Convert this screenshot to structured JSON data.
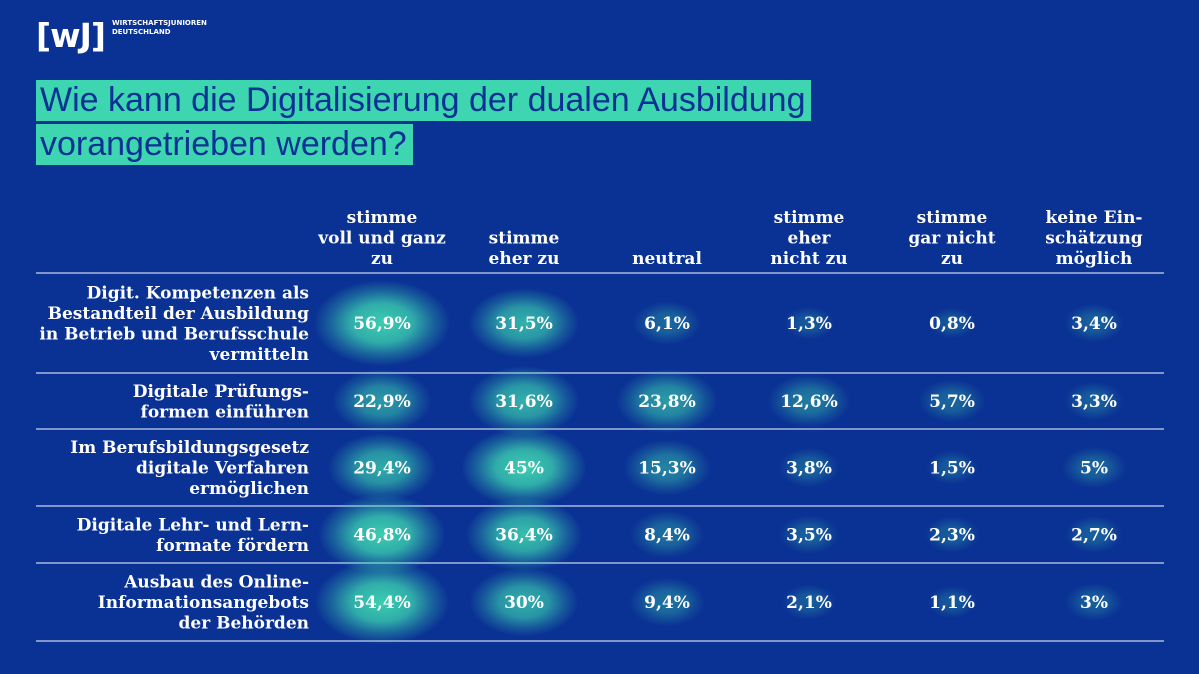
{
  "brand": {
    "mark": "[wJ]",
    "name_line1": "WIRTSCHAFTSJUNIOREN",
    "name_line2": "DEUTSCHLAND"
  },
  "title": {
    "line1": "Wie kann die Digitalisierung der dualen Ausbildung",
    "line2": "vorangetrieben werden?"
  },
  "colors": {
    "background": "#0a3194",
    "title_highlight": "#3dd6b1",
    "glow": "#3dd6b1"
  },
  "chart_data": {
    "type": "table",
    "columns": [
      {
        "lines": [
          "stimme",
          "voll und ganz",
          "zu"
        ]
      },
      {
        "lines": [
          "stimme",
          "eher zu"
        ]
      },
      {
        "lines": [
          "neutral"
        ]
      },
      {
        "lines": [
          "stimme",
          "eher",
          "nicht zu"
        ]
      },
      {
        "lines": [
          "stimme",
          "gar nicht",
          "zu"
        ]
      },
      {
        "lines": [
          "keine Ein-",
          "schätzung",
          "möglich"
        ]
      }
    ],
    "rows": [
      {
        "label_lines": [
          "Digit. Kompetenzen als",
          "Bestandteil der Ausbildung",
          "in Betrieb und Berufsschule",
          "vermitteln"
        ],
        "cells": [
          "56,9%",
          "31,5%",
          "6,1%",
          "1,3%",
          "0,8%",
          "3,4%"
        ],
        "values": [
          56.9,
          31.5,
          6.1,
          1.3,
          0.8,
          3.4
        ]
      },
      {
        "label_lines": [
          "Digitale Prüfungs-",
          "formen  einführen"
        ],
        "cells": [
          "22,9%",
          "31,6%",
          "23,8%",
          "12,6%",
          "5,7%",
          "3,3%"
        ],
        "values": [
          22.9,
          31.6,
          23.8,
          12.6,
          5.7,
          3.3
        ]
      },
      {
        "label_lines": [
          "Im Berufsbildungsgesetz",
          "digitale Verfahren",
          "ermöglichen"
        ],
        "cells": [
          "29,4%",
          "45%",
          "15,3%",
          "3,8%",
          "1,5%",
          "5%"
        ],
        "values": [
          29.4,
          45,
          15.3,
          3.8,
          1.5,
          5
        ]
      },
      {
        "label_lines": [
          "Digitale Lehr- und Lern-",
          "formate fördern"
        ],
        "cells": [
          "46,8%",
          "36,4%",
          "8,4%",
          "3,5%",
          "2,3%",
          "2,7%"
        ],
        "values": [
          46.8,
          36.4,
          8.4,
          3.5,
          2.3,
          2.7
        ]
      },
      {
        "label_lines": [
          "Ausbau des Online-",
          "Informationsangebots",
          "der Behörden"
        ],
        "cells": [
          "54,4%",
          "30%",
          "9,4%",
          "2,1%",
          "1,1%",
          "3%"
        ],
        "values": [
          54.4,
          30,
          9.4,
          2.1,
          1.1,
          3
        ]
      }
    ]
  }
}
